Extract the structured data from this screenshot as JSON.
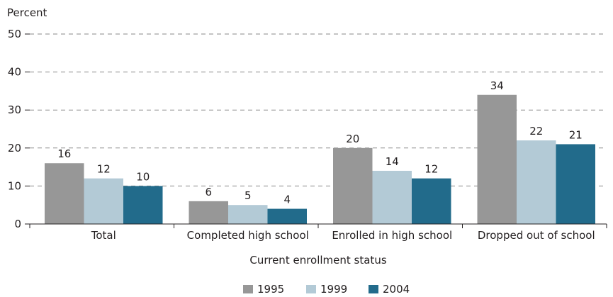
{
  "chart_data": {
    "type": "bar",
    "ylabel": "Percent",
    "xlabel": "Current enrollment status",
    "ylim": [
      0,
      50
    ],
    "yticks": [
      0,
      10,
      20,
      30,
      40,
      50
    ],
    "grid": "dashed horizontal",
    "legend_position": "bottom-center",
    "categories": [
      "Total",
      "Completed high school",
      "Enrolled in high school",
      "Dropped out of school"
    ],
    "series": [
      {
        "name": "1995",
        "color": "#979797",
        "values": [
          16,
          6,
          20,
          34
        ]
      },
      {
        "name": "1999",
        "color": "#b3cad6",
        "values": [
          12,
          5,
          14,
          22
        ]
      },
      {
        "name": "2004",
        "color": "#226b8b",
        "values": [
          10,
          4,
          12,
          21
        ]
      }
    ]
  }
}
